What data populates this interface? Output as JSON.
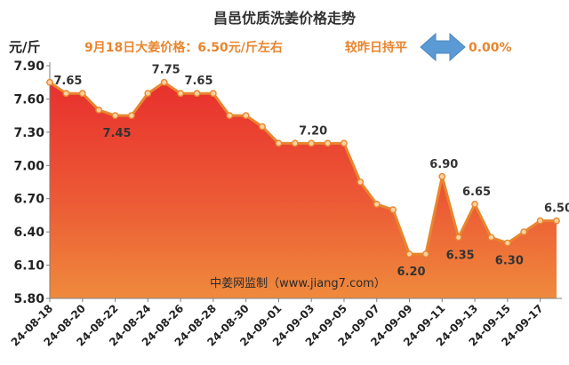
{
  "chart_data": {
    "type": "area",
    "title": "昌邑优质洗姜价格走势",
    "ylabel": "元/斤",
    "xlabel": "",
    "ylim": [
      5.8,
      7.9
    ],
    "yticks": [
      "7.90",
      "7.60",
      "7.30",
      "7.00",
      "6.70",
      "6.40",
      "6.10",
      "5.80"
    ],
    "ytick_values": [
      7.9,
      7.6,
      7.3,
      7.0,
      6.7,
      6.4,
      6.1,
      5.8
    ],
    "x": [
      "24-08-18",
      "24-08-19",
      "24-08-20",
      "24-08-21",
      "24-08-22",
      "24-08-23",
      "24-08-24",
      "24-08-25",
      "24-08-26",
      "24-08-27",
      "24-08-28",
      "24-08-29",
      "24-08-30",
      "24-08-31",
      "24-09-01",
      "24-09-02",
      "24-09-03",
      "24-09-04",
      "24-09-05",
      "24-09-06",
      "24-09-07",
      "24-09-08",
      "24-09-09",
      "24-09-10",
      "24-09-11",
      "24-09-12",
      "24-09-13",
      "24-09-14",
      "24-09-15",
      "24-09-16",
      "24-09-17",
      "24-09-18"
    ],
    "xtick_labels": [
      "24-08-18",
      "24-08-20",
      "24-08-22",
      "24-08-24",
      "24-08-26",
      "24-08-28",
      "24-08-30",
      "24-09-01",
      "24-09-03",
      "24-09-05",
      "24-09-07",
      "24-09-09",
      "24-09-11",
      "24-09-13",
      "24-09-15",
      "24-09-17"
    ],
    "xtick_indices": [
      0,
      2,
      4,
      6,
      8,
      10,
      12,
      14,
      16,
      18,
      20,
      22,
      24,
      26,
      28,
      30
    ],
    "values": [
      7.75,
      7.65,
      7.65,
      7.5,
      7.45,
      7.45,
      7.65,
      7.75,
      7.65,
      7.65,
      7.65,
      7.45,
      7.45,
      7.35,
      7.2,
      7.2,
      7.2,
      7.2,
      7.2,
      6.85,
      6.65,
      6.6,
      6.2,
      6.2,
      6.9,
      6.35,
      6.65,
      6.35,
      6.3,
      6.4,
      6.5,
      6.5
    ],
    "data_labels": [
      {
        "index": 1,
        "text": "7.65"
      },
      {
        "index": 4,
        "text": "7.45"
      },
      {
        "index": 7,
        "text": "7.75"
      },
      {
        "index": 9,
        "text": "7.65"
      },
      {
        "index": 16,
        "text": "7.20"
      },
      {
        "index": 22,
        "text": "6.20"
      },
      {
        "index": 24,
        "text": "6.90"
      },
      {
        "index": 25,
        "text": "6.35"
      },
      {
        "index": 26,
        "text": "6.65"
      },
      {
        "index": 28,
        "text": "6.30"
      },
      {
        "index": 31,
        "text": "6.50"
      }
    ],
    "grid": false,
    "colors": {
      "line": "#e8862f",
      "marker_fill": "#fbd2a0",
      "fill_top": "#e8302e",
      "fill_bottom": "#ef8a3c",
      "title": "#333333",
      "accent_orange": "#e8862f",
      "arrow": "#5b9bd5",
      "label": "#333333"
    }
  },
  "header": {
    "date_price_text": "9月18日大姜价格：6.50元/斤左右",
    "compare_text": "较昨日持平",
    "change_percent": "0.00%"
  },
  "watermark": "中姜网监制（www.jiang7.com）"
}
